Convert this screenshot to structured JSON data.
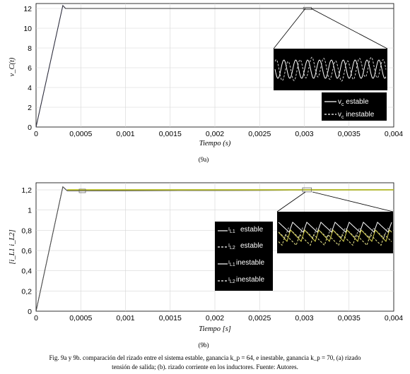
{
  "chart_data": [
    {
      "type": "line",
      "xlabel": "Tiempo (s)",
      "ylabel": "v_C(t)",
      "xlim": [
        0,
        0.004
      ],
      "ylim": [
        0,
        12.5
      ],
      "xticks": [
        "0",
        "0,0005",
        "0,001",
        "0,0015",
        "0,002",
        "0,0025",
        "0,003",
        "0,0035",
        "0,004"
      ],
      "yticks": [
        "0",
        "2",
        "4",
        "6",
        "8",
        "10",
        "12"
      ],
      "grid": true,
      "legend_position": "bottom-right",
      "series": [
        {
          "name": "v_c estable",
          "color": "#6b6bd8",
          "x": [
            0,
            0.0003,
            0.00033,
            0.00036,
            0.004
          ],
          "y": [
            0,
            12.3,
            12.0,
            12.0,
            12.0
          ]
        },
        {
          "name": "v_c inestable",
          "color": "#333333",
          "x": [
            0,
            0.0003,
            0.00033,
            0.00036,
            0.004
          ],
          "y": [
            0,
            12.3,
            12.0,
            12.0,
            12.0
          ]
        }
      ],
      "legend": {
        "entries": [
          {
            "main": "v",
            "sub": "c",
            "text": " estable",
            "style": "solid"
          },
          {
            "main": "v",
            "sub": "c",
            "text": " inestable",
            "style": "dashed"
          }
        ]
      },
      "zoom_region": {
        "x": [
          0.00299,
          0.00308
        ],
        "y": [
          11.88,
          12.12
        ]
      },
      "sublabel": "(9a)"
    },
    {
      "type": "line",
      "xlabel": "Tiempo [s]",
      "ylabel": "[i_L1  i_L2]",
      "xlim": [
        0,
        0.004
      ],
      "ylim": [
        0,
        1.27
      ],
      "xticks": [
        "0",
        "0,0005",
        "0,001",
        "0,0015",
        "0,002",
        "0,0025",
        "0,003",
        "0,0035",
        "0,004"
      ],
      "yticks": [
        "0",
        "0,2",
        "0,4",
        "0,6",
        "0,8",
        "1",
        "1,2"
      ],
      "grid": true,
      "legend_position": "center-right",
      "series": [
        {
          "name": "I_L1 estable",
          "color": "#222222",
          "x": [
            0,
            0.0003,
            0.00035,
            0.004
          ],
          "y": [
            0,
            1.23,
            1.19,
            1.2
          ]
        },
        {
          "name": "I_L2 estable",
          "color": "#555555",
          "x": [
            0,
            0.0003,
            0.00035,
            0.004
          ],
          "y": [
            0,
            1.23,
            1.19,
            1.2
          ]
        },
        {
          "name": "I_L1 inestable",
          "color": "#2e8b2e",
          "x": [
            0.00035,
            0.004
          ],
          "y": [
            1.2,
            1.2
          ]
        },
        {
          "name": "I_L2 inestable",
          "color": "#c8c020",
          "x": [
            0.00035,
            0.004
          ],
          "y": [
            1.2,
            1.2
          ]
        }
      ],
      "legend": {
        "entries": [
          {
            "main": "I",
            "sub": "L1",
            "text": "estable",
            "style": "solid"
          },
          {
            "main": "I",
            "sub": "L2",
            "text": "estable",
            "style": "dashed"
          },
          {
            "main": "I",
            "sub": "L1",
            "text": "inestable",
            "style": "solid"
          },
          {
            "main": "I",
            "sub": "L2",
            "text": "inestable",
            "style": "dashed"
          }
        ]
      },
      "zoom_region": {
        "x": [
          0.00298,
          0.00308
        ],
        "y": [
          1.18,
          1.22
        ]
      },
      "sublabel": "(9b)"
    }
  ],
  "caption": {
    "line1": "Fig. 9a y 9b. comparación del rizado entre el sistema estable, ganancia k_p = 64, e inestable, ganancia k_p = 70, (a) rizado",
    "line2": "tensión de salida; (b). rizado corriente en los inductores. Fuente: Autores."
  }
}
